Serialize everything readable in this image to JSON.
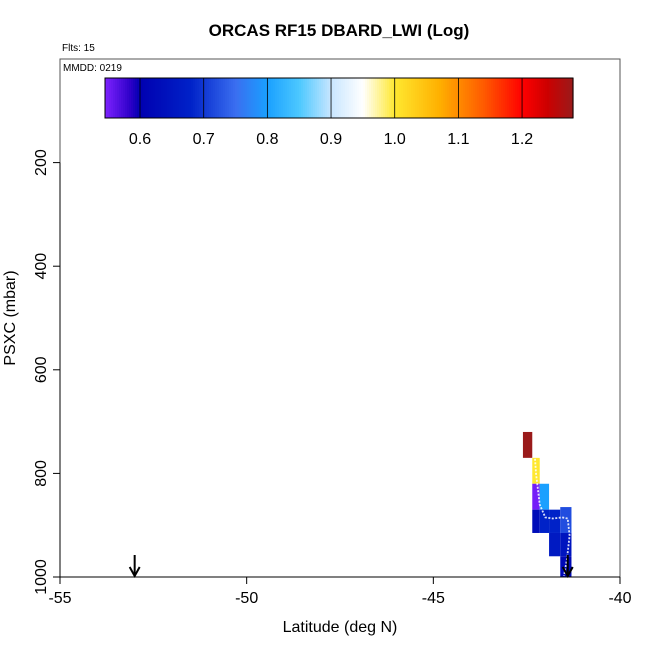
{
  "chart_data": {
    "type": "heatmap",
    "title": "ORCAS RF15 DBARD_LWI (Log)",
    "flights_label": "Flts: 15",
    "date_label": "MMDD: 0219",
    "xlabel": "Latitude (deg N)",
    "ylabel": "PSXC (mbar)",
    "xlim": [
      -55,
      -40
    ],
    "ylim": [
      1000,
      0
    ],
    "x_ticks": [
      -55,
      -50,
      -45,
      -40
    ],
    "y_ticks": [
      200,
      400,
      600,
      800,
      1000
    ],
    "grid": false,
    "colorbar": {
      "placement": "top",
      "range": [
        0.545,
        1.28
      ],
      "ticks": [
        0.6,
        0.7,
        0.8,
        0.9,
        1.0,
        1.1,
        1.2
      ],
      "tick_labels": [
        "0.6",
        "0.7",
        "0.8",
        "0.9",
        "1.0",
        "1.1",
        "1.2"
      ],
      "colors": [
        {
          "v": 0.545,
          "c": "#7e22ff"
        },
        {
          "v": 0.585,
          "c": "#2d00c8"
        },
        {
          "v": 0.6,
          "c": "#0000b0"
        },
        {
          "v": 0.68,
          "c": "#0022c8"
        },
        {
          "v": 0.75,
          "c": "#3a6ef0"
        },
        {
          "v": 0.8,
          "c": "#1aa0ff"
        },
        {
          "v": 0.85,
          "c": "#4cc8ff"
        },
        {
          "v": 0.9,
          "c": "#c8e6ff"
        },
        {
          "v": 0.95,
          "c": "#ffffff"
        },
        {
          "v": 1.0,
          "c": "#ffe830"
        },
        {
          "v": 1.07,
          "c": "#ffb000"
        },
        {
          "v": 1.14,
          "c": "#ff5a00"
        },
        {
          "v": 1.2,
          "c": "#ff0000"
        },
        {
          "v": 1.24,
          "c": "#cc0000"
        },
        {
          "v": 1.28,
          "c": "#9a1a1a"
        }
      ]
    },
    "cells": [
      {
        "lat_min": -42.6,
        "lat_max": -42.35,
        "p_top": 720,
        "p_bottom": 770,
        "value": 1.28
      },
      {
        "lat_min": -42.35,
        "lat_max": -42.15,
        "p_top": 770,
        "p_bottom": 820,
        "value": 1.0
      },
      {
        "lat_min": -42.35,
        "lat_max": -42.15,
        "p_top": 820,
        "p_bottom": 870,
        "value": 0.55
      },
      {
        "lat_min": -42.35,
        "lat_max": -42.15,
        "p_top": 870,
        "p_bottom": 915,
        "value": 0.63
      },
      {
        "lat_min": -42.15,
        "lat_max": -41.9,
        "p_top": 820,
        "p_bottom": 870,
        "value": 0.8
      },
      {
        "lat_min": -42.15,
        "lat_max": -41.9,
        "p_top": 870,
        "p_bottom": 915,
        "value": 0.68
      },
      {
        "lat_min": -41.9,
        "lat_max": -41.6,
        "p_top": 870,
        "p_bottom": 915,
        "value": 0.68
      },
      {
        "lat_min": -41.9,
        "lat_max": -41.6,
        "p_top": 915,
        "p_bottom": 960,
        "value": 0.66
      },
      {
        "lat_min": -41.6,
        "lat_max": -41.3,
        "p_top": 865,
        "p_bottom": 915,
        "value": 0.72
      },
      {
        "lat_min": -41.6,
        "lat_max": -41.3,
        "p_top": 915,
        "p_bottom": 960,
        "value": 0.65
      },
      {
        "lat_min": -41.6,
        "lat_max": -41.3,
        "p_top": 960,
        "p_bottom": 1005,
        "value": 0.62
      }
    ],
    "flight_track": [
      {
        "lat": -42.3,
        "p": 745
      },
      {
        "lat": -42.25,
        "p": 800
      },
      {
        "lat": -42.15,
        "p": 860
      },
      {
        "lat": -42.0,
        "p": 885
      },
      {
        "lat": -41.8,
        "p": 887
      },
      {
        "lat": -41.55,
        "p": 885
      },
      {
        "lat": -41.4,
        "p": 887
      },
      {
        "lat": -41.35,
        "p": 920
      },
      {
        "lat": -41.42,
        "p": 965
      },
      {
        "lat": -41.5,
        "p": 998
      }
    ],
    "markers": [
      {
        "type": "down-arrow",
        "lat": -53.0
      },
      {
        "type": "down-arrow",
        "lat": -41.4
      }
    ]
  }
}
